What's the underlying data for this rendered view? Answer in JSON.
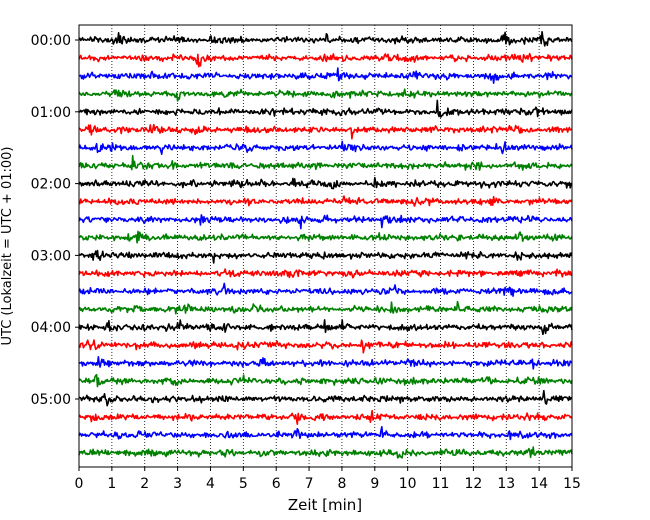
{
  "chart_data": {
    "type": "line",
    "title": "",
    "xlabel": "Zeit  [min]",
    "ylabel": "UTC (Lokalzeit = UTC + 01:00)",
    "xlim": [
      0,
      15
    ],
    "x_ticks": [
      "0",
      "1",
      "2",
      "3",
      "4",
      "5",
      "6",
      "7",
      "8",
      "9",
      "10",
      "11",
      "12",
      "13",
      "14",
      "15"
    ],
    "y_ticks": [
      "00:00",
      "01:00",
      "02:00",
      "03:00",
      "04:00",
      "05:00"
    ],
    "y_tick_rows": [
      0,
      4,
      8,
      12,
      16,
      20
    ],
    "row_count": 24,
    "row_minutes": 15,
    "vertical_grid": true,
    "grid_style": "dotted",
    "color_cycle": [
      "#000000",
      "#ff0000",
      "#0000ff",
      "#008000"
    ],
    "series": [
      {
        "start": "00:00",
        "events": [
          [
            1.2,
            1.0
          ],
          [
            12.9,
            1.0
          ],
          [
            14.1,
            1.0
          ],
          [
            4.0,
            0.4
          ],
          [
            7.5,
            0.4
          ]
        ]
      },
      {
        "start": "00:15",
        "events": [
          [
            2.8,
            0.4
          ],
          [
            3.6,
            0.6
          ],
          [
            10.1,
            0.5
          ],
          [
            13.4,
            0.4
          ]
        ]
      },
      {
        "start": "00:30",
        "events": [
          [
            2.2,
            0.4
          ],
          [
            7.9,
            0.8
          ],
          [
            10.2,
            0.6
          ],
          [
            12.6,
            0.4
          ]
        ]
      },
      {
        "start": "00:45",
        "events": [
          [
            1.1,
            0.4
          ],
          [
            3.0,
            0.6
          ],
          [
            7.7,
            0.4
          ],
          [
            11.2,
            0.5
          ]
        ]
      },
      {
        "start": "01:00",
        "events": [
          [
            6.8,
            0.5
          ],
          [
            8.1,
            0.4
          ],
          [
            10.9,
            0.8
          ],
          [
            13.9,
            0.4
          ]
        ]
      },
      {
        "start": "01:15",
        "events": [
          [
            0.3,
            0.6
          ],
          [
            2.2,
            0.5
          ],
          [
            3.5,
            0.8
          ],
          [
            8.3,
            0.6
          ],
          [
            13.3,
            0.4
          ]
        ]
      },
      {
        "start": "01:30",
        "events": [
          [
            0.5,
            1.0
          ],
          [
            2.5,
            0.7
          ],
          [
            8.0,
            0.6
          ],
          [
            12.9,
            0.8
          ]
        ]
      },
      {
        "start": "01:45",
        "events": [
          [
            1.6,
            0.6
          ],
          [
            2.7,
            0.5
          ],
          [
            12.1,
            0.5
          ],
          [
            13.5,
            0.4
          ]
        ]
      },
      {
        "start": "02:00",
        "events": [
          [
            6.5,
            1.0
          ],
          [
            7.7,
            0.7
          ],
          [
            9.0,
            0.6
          ],
          [
            2.2,
            0.4
          ]
        ]
      },
      {
        "start": "02:15",
        "events": [
          [
            1.5,
            0.4
          ],
          [
            8.0,
            0.5
          ],
          [
            10.1,
            0.6
          ],
          [
            12.5,
            0.4
          ]
        ]
      },
      {
        "start": "02:30",
        "events": [
          [
            3.7,
            0.6
          ],
          [
            6.7,
            0.6
          ],
          [
            9.2,
            0.5
          ],
          [
            12.3,
            0.4
          ]
        ]
      },
      {
        "start": "02:45",
        "events": [
          [
            1.8,
            0.5
          ],
          [
            6.7,
            0.9
          ],
          [
            13.4,
            0.8
          ],
          [
            14.4,
            0.5
          ]
        ]
      },
      {
        "start": "03:00",
        "events": [
          [
            0.4,
            1.0
          ],
          [
            4.1,
            0.6
          ],
          [
            11.8,
            0.5
          ],
          [
            13.3,
            0.6
          ]
        ]
      },
      {
        "start": "03:15",
        "events": [
          [
            0.8,
            0.5
          ],
          [
            6.3,
            0.6
          ],
          [
            8.3,
            0.5
          ],
          [
            14.5,
            0.6
          ]
        ]
      },
      {
        "start": "03:30",
        "events": [
          [
            0.6,
            0.5
          ],
          [
            4.4,
            0.6
          ],
          [
            9.6,
            0.5
          ],
          [
            13.0,
            0.6
          ]
        ]
      },
      {
        "start": "03:45",
        "events": [
          [
            3.2,
            0.6
          ],
          [
            5.3,
            0.5
          ],
          [
            9.5,
            0.6
          ],
          [
            11.5,
            0.5
          ]
        ]
      },
      {
        "start": "04:00",
        "events": [
          [
            0.9,
            0.6
          ],
          [
            3.0,
            0.6
          ],
          [
            4.4,
            0.7
          ],
          [
            7.5,
            1.0
          ],
          [
            8.0,
            0.9
          ],
          [
            14.1,
            0.6
          ]
        ]
      },
      {
        "start": "04:15",
        "events": [
          [
            0.3,
            0.6
          ],
          [
            4.8,
            0.5
          ],
          [
            8.6,
            0.8
          ],
          [
            13.6,
            0.5
          ]
        ]
      },
      {
        "start": "04:30",
        "events": [
          [
            0.6,
            0.7
          ],
          [
            5.5,
            0.6
          ],
          [
            10.0,
            0.5
          ],
          [
            13.8,
            0.5
          ]
        ]
      },
      {
        "start": "04:45",
        "events": [
          [
            0.5,
            0.5
          ],
          [
            4.9,
            0.6
          ],
          [
            9.0,
            0.5
          ],
          [
            12.4,
            0.5
          ]
        ]
      },
      {
        "start": "05:00",
        "events": [
          [
            0.8,
            0.6
          ],
          [
            3.3,
            0.5
          ],
          [
            8.6,
            0.6
          ],
          [
            14.1,
            0.8
          ]
        ]
      },
      {
        "start": "05:15",
        "events": [
          [
            0.4,
            0.5
          ],
          [
            6.6,
            0.5
          ],
          [
            8.9,
            0.6
          ],
          [
            13.6,
            0.6
          ]
        ]
      },
      {
        "start": "05:30",
        "events": [
          [
            1.7,
            0.5
          ],
          [
            6.5,
            1.0
          ],
          [
            9.2,
            0.7
          ],
          [
            13.1,
            0.5
          ]
        ]
      },
      {
        "start": "05:45",
        "events": [
          [
            3.0,
            0.5
          ],
          [
            9.7,
            0.5
          ],
          [
            11.4,
            0.5
          ],
          [
            13.7,
            1.0
          ]
        ]
      }
    ]
  }
}
